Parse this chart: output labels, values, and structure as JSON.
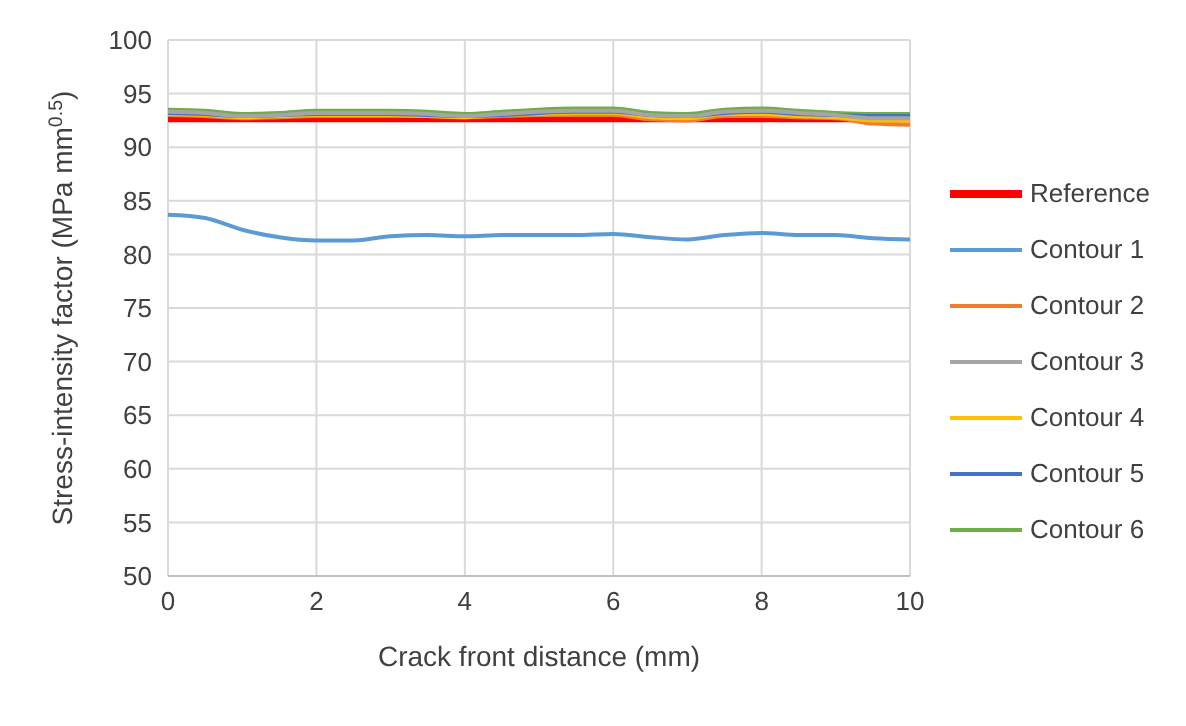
{
  "chart_data": {
    "type": "line",
    "xlabel": "Crack front distance (mm)",
    "ylabel": "Stress-intensity factor (MPa mm$^{0.5}$)",
    "x": [
      0,
      0.5,
      1,
      1.5,
      2,
      2.5,
      3,
      3.5,
      4,
      4.5,
      5,
      5.5,
      6,
      6.5,
      7,
      7.5,
      8,
      8.5,
      9,
      9.5,
      10
    ],
    "series": [
      {
        "name": "Reference",
        "color": "#ff0000",
        "values": [
          92.7,
          92.7,
          92.7,
          92.7,
          92.7,
          92.7,
          92.7,
          92.7,
          92.7,
          92.7,
          92.7,
          92.7,
          92.7,
          92.7,
          92.7,
          92.7,
          92.7,
          92.7,
          92.7,
          92.7,
          92.7
        ]
      },
      {
        "name": "Contour 1",
        "color": "#5b9bd5",
        "values": [
          83.7,
          83.4,
          82.3,
          81.6,
          81.3,
          81.3,
          81.7,
          81.8,
          81.7,
          81.8,
          81.8,
          81.8,
          81.9,
          81.6,
          81.4,
          81.8,
          82.0,
          81.8,
          81.8,
          81.5,
          81.4
        ]
      },
      {
        "name": "Contour 2",
        "color": "#ed7d31",
        "values": [
          93.0,
          92.9,
          92.7,
          92.8,
          92.9,
          92.9,
          92.9,
          92.9,
          92.8,
          92.9,
          93.0,
          93.0,
          93.0,
          92.6,
          92.5,
          92.9,
          92.9,
          92.8,
          92.7,
          92.2,
          92.1
        ]
      },
      {
        "name": "Contour 3",
        "color": "#a5a5a5",
        "values": [
          93.3,
          93.2,
          92.9,
          93.0,
          93.2,
          93.2,
          93.2,
          93.1,
          92.9,
          93.1,
          93.3,
          93.4,
          93.4,
          93.0,
          92.9,
          93.3,
          93.4,
          93.2,
          93.0,
          92.7,
          92.7
        ]
      },
      {
        "name": "Contour 4",
        "color": "#ffc000",
        "values": [
          93.1,
          93.0,
          92.8,
          92.9,
          93.0,
          93.0,
          93.0,
          92.9,
          92.8,
          93.0,
          93.1,
          93.2,
          93.2,
          92.8,
          92.7,
          93.1,
          93.1,
          92.9,
          92.8,
          92.5,
          92.5
        ]
      },
      {
        "name": "Contour 5",
        "color": "#4472c4",
        "values": [
          93.2,
          93.1,
          92.9,
          93.0,
          93.1,
          93.1,
          93.1,
          93.0,
          92.9,
          93.0,
          93.2,
          93.3,
          93.3,
          93.0,
          92.9,
          93.2,
          93.3,
          93.1,
          93.0,
          92.9,
          92.9
        ]
      },
      {
        "name": "Contour 6",
        "color": "#70ad47",
        "values": [
          93.5,
          93.4,
          93.1,
          93.2,
          93.4,
          93.4,
          93.4,
          93.3,
          93.1,
          93.3,
          93.5,
          93.6,
          93.6,
          93.2,
          93.1,
          93.5,
          93.6,
          93.4,
          93.2,
          93.1,
          93.1
        ]
      }
    ],
    "xlim": [
      0,
      10
    ],
    "xticks": [
      0,
      2,
      4,
      6,
      8,
      10
    ],
    "ylim": [
      50,
      100
    ],
    "yticks": [
      50,
      55,
      60,
      65,
      70,
      75,
      80,
      85,
      90,
      95,
      100
    ],
    "grid": true,
    "legend": "right",
    "marker": "none",
    "line_style": "solid"
  }
}
